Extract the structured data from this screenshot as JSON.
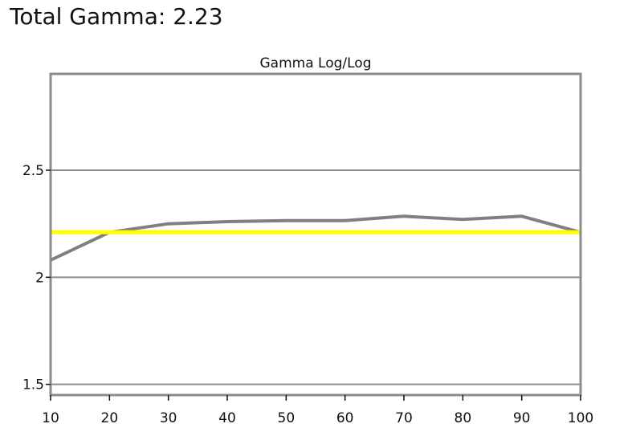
{
  "header": {
    "total_gamma": "Total Gamma: 2.23"
  },
  "chart_data": {
    "type": "line",
    "title": "Gamma Log/Log",
    "xlabel": "",
    "ylabel": "",
    "x": [
      10,
      20,
      30,
      40,
      50,
      60,
      70,
      80,
      90,
      100
    ],
    "xlim": [
      10,
      100
    ],
    "ylim": [
      1.45,
      2.95
    ],
    "xticks": [
      "10",
      "20",
      "30",
      "40",
      "50",
      "60",
      "70",
      "80",
      "90",
      "100"
    ],
    "yticks": [
      {
        "value": 1.5,
        "label": "1.5"
      },
      {
        "value": 2.0,
        "label": "2"
      },
      {
        "value": 2.5,
        "label": "2.5"
      }
    ],
    "grid": true,
    "series": [
      {
        "values": [
          2.08,
          2.21,
          2.25,
          2.26,
          2.265,
          2.265,
          2.285,
          2.27,
          2.285,
          2.21
        ],
        "color": "#808080"
      },
      {
        "values": [
          2.21,
          2.21,
          2.21,
          2.21,
          2.21,
          2.21,
          2.21,
          2.21,
          2.21,
          2.21
        ],
        "color": "#ffff00"
      }
    ],
    "colors": {
      "frame": "#8c8c8c",
      "grid": "#8c8c8c",
      "measured": "#808080",
      "target": "#ffff00"
    }
  }
}
